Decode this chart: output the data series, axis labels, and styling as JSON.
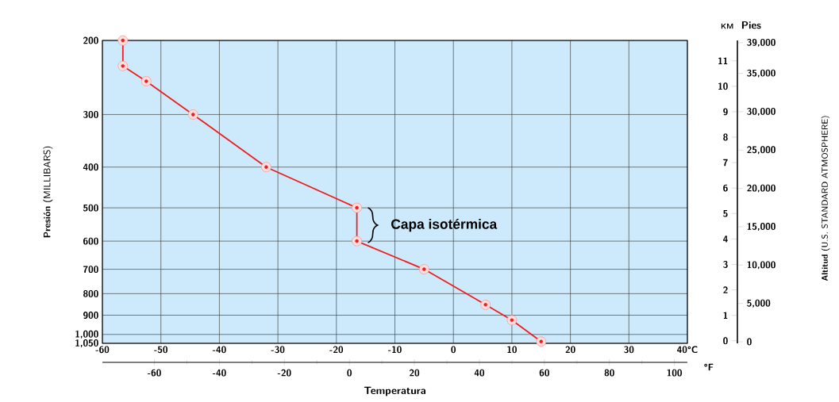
{
  "chart_data": {
    "type": "line",
    "xlabel": "Temperatura",
    "ylabel": "**Presión** (MILLIBARS)",
    "y2label": "KM",
    "y3label": "Pies",
    "x2label": "°F",
    "series": [
      {
        "color": "#ee1c1c",
        "x": [
          -56.5,
          -56.5,
          -52.5,
          -44.5,
          -32,
          -16.5,
          -16.5,
          -5,
          5.5,
          10,
          15
        ],
        "values": [
          200,
          230,
          250,
          300,
          400,
          500,
          600,
          700,
          850,
          925,
          1040
        ]
      }
    ],
    "marker": "circle",
    "log": "y",
    "grid": true,
    "xlim": [
      -60,
      40
    ],
    "xticks": [
      -60,
      -50,
      -40,
      -30,
      -20,
      -10,
      0,
      10,
      20,
      30,
      {
        "value": 40,
        "label": "40°C"
      }
    ],
    "ylim": [
      1050,
      200
    ],
    "yticks": [
      200,
      300,
      400,
      500,
      600,
      700,
      800,
      900,
      {
        "value": 1000,
        "label": "1,000"
      },
      {
        "value": 1050,
        "label": "1,050"
      }
    ],
    "x2lim": [
      -76,
      104
    ],
    "x2ticks": [
      -60,
      -40,
      -20,
      0,
      20,
      40,
      60,
      80,
      100
    ],
    "y2lim": [
      -0.1,
      11.8
    ],
    "y2ticks": [
      0,
      1,
      2,
      3,
      4,
      5,
      6,
      7,
      8,
      9,
      10,
      11
    ],
    "y3lim": [
      -200,
      39300
    ],
    "y3ticks": [
      0,
      {
        "value": 5000,
        "label": "5,000"
      },
      {
        "value": 10000,
        "label": "10,000"
      },
      {
        "value": 15000,
        "label": "15,000"
      },
      {
        "value": 20000,
        "label": "20,000"
      },
      {
        "value": 25000,
        "label": "25,000"
      },
      {
        "value": 30000,
        "label": "30,000"
      },
      {
        "value": 35000,
        "label": "35,000"
      },
      {
        "value": 39000,
        "label": "39,000"
      }
    ],
    "annotations": [
      {
        "text": "Capa isotérmica",
        "x": -16.5,
        "y": 550
      },
      "**Altitud** (U.S. STANDARD ATMOSPHERE)"
    ]
  }
}
